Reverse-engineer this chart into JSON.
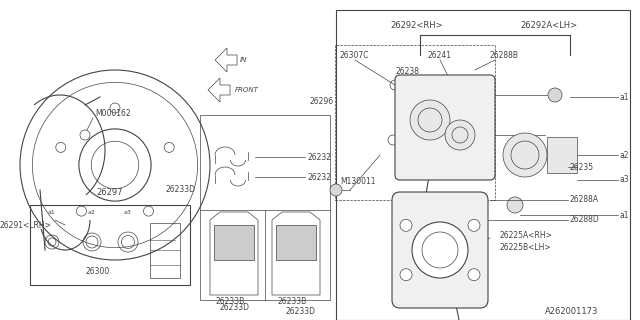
{
  "bg_color": "#f5f5f0",
  "line_color": "#555555",
  "diagram_number": "A262001173",
  "figsize": [
    6.4,
    3.2
  ],
  "dpi": 100,
  "labels": {
    "top_box": "26297",
    "disc_label": "26291<LRH>",
    "disc_bottom": "26300",
    "m000162": "M000162",
    "rh_caliper": "26292<RH>",
    "lh_caliper": "26292A<LH>",
    "p26307c": "26307C",
    "p26241": "26241",
    "p26288b": "26288B",
    "p26238": "26238",
    "p26296": "26296",
    "p26232a": "26232",
    "p26232b": "26232",
    "p26235": "26235",
    "p26288a": "26288A",
    "p26288d": "26288D",
    "p26233d_top": "26233D",
    "p26233b_l": "26233B",
    "p26233b_r": "26233B",
    "p26233d_bot": "26233D",
    "m130011": "M130011",
    "p26225a": "26225A<RH>",
    "p26225b": "26225B<LH>",
    "a1_top": "a1",
    "a2_mid": "a2",
    "a3_bot": "a3",
    "a1_bot2": "a1",
    "front_label": "FRONT",
    "in_label": "IN"
  }
}
